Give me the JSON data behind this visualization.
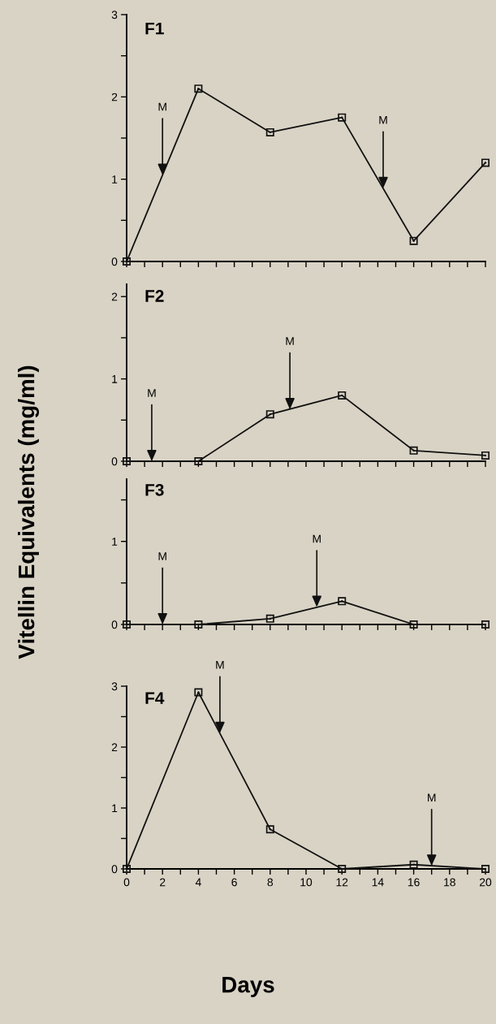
{
  "chart_data": [
    {
      "type": "line",
      "title": "F1",
      "ylabel": "Vitellin Equivalents (mg/ml)",
      "x": [
        0,
        4,
        8,
        12,
        16,
        20
      ],
      "series": [
        {
          "color": "#111111",
          "values": [
            0,
            2.1,
            1.57,
            1.75,
            0.25,
            1.2
          ]
        }
      ],
      "marker": "square",
      "line_style": "solid",
      "xlim": [
        0,
        20
      ],
      "ylim": [
        0,
        3
      ],
      "xticks": [
        0,
        {
          "value": 1,
          "label": null
        },
        2,
        {
          "value": 3,
          "label": null
        },
        4,
        {
          "value": 5,
          "label": null
        },
        6,
        {
          "value": 7,
          "label": null
        },
        8,
        {
          "value": 9,
          "label": null
        },
        10,
        {
          "value": 11,
          "label": null
        },
        12,
        {
          "value": 13,
          "label": null
        },
        14,
        {
          "value": 15,
          "label": null
        },
        16,
        {
          "value": 17,
          "label": null
        },
        18,
        {
          "value": 19,
          "label": null
        },
        20
      ],
      "yticks": [
        0,
        {
          "value": 0.5,
          "label": null
        },
        1,
        {
          "value": 1.5,
          "label": null
        },
        2,
        {
          "value": 2.5,
          "label": null
        },
        3
      ],
      "tick_labels": "y",
      "grid": false,
      "legend": false,
      "annotations": [
        {
          "text": "M",
          "x": 2,
          "y": 1.05
        },
        {
          "text": "M",
          "x": 14.3,
          "y": 0.89
        }
      ]
    },
    {
      "type": "line",
      "title": "F2",
      "x": [
        0,
        4,
        8,
        12,
        16,
        20
      ],
      "series": [
        {
          "color": "#111111",
          "values": [
            0,
            0,
            0.57,
            0.8,
            0.13,
            0.07
          ]
        }
      ],
      "marker": "square",
      "line_style": "solid",
      "xlim": [
        0,
        20
      ],
      "ylim": [
        0,
        2.15
      ],
      "xticks": [
        0,
        {
          "value": 1,
          "label": null
        },
        2,
        {
          "value": 3,
          "label": null
        },
        4,
        {
          "value": 5,
          "label": null
        },
        6,
        {
          "value": 7,
          "label": null
        },
        8,
        {
          "value": 9,
          "label": null
        },
        10,
        {
          "value": 11,
          "label": null
        },
        12,
        {
          "value": 13,
          "label": null
        },
        14,
        {
          "value": 15,
          "label": null
        },
        16,
        {
          "value": 17,
          "label": null
        },
        18,
        {
          "value": 19,
          "label": null
        },
        20
      ],
      "yticks": [
        0,
        {
          "value": 0.5,
          "label": null
        },
        1,
        {
          "value": 1.5,
          "label": null
        },
        2
      ],
      "tick_labels": "y",
      "grid": false,
      "legend": false,
      "annotations": [
        {
          "text": "M",
          "x": 1.4,
          "y": 0
        },
        {
          "text": "M",
          "x": 9.1,
          "y": 0.63
        }
      ]
    },
    {
      "type": "line",
      "title": "F3",
      "x": [
        0,
        4,
        8,
        12,
        16,
        20
      ],
      "series": [
        {
          "color": "#111111",
          "values": [
            0,
            0,
            0.07,
            0.28,
            0,
            0
          ]
        }
      ],
      "marker": "square",
      "line_style": "solid",
      "xlim": [
        0,
        20
      ],
      "ylim": [
        0,
        1.75
      ],
      "xticks": [
        0,
        {
          "value": 1,
          "label": null
        },
        2,
        {
          "value": 3,
          "label": null
        },
        4,
        {
          "value": 5,
          "label": null
        },
        6,
        {
          "value": 7,
          "label": null
        },
        8,
        {
          "value": 9,
          "label": null
        },
        10,
        {
          "value": 11,
          "label": null
        },
        12,
        {
          "value": 13,
          "label": null
        },
        14,
        {
          "value": 15,
          "label": null
        },
        16,
        {
          "value": 17,
          "label": null
        },
        18,
        {
          "value": 19,
          "label": null
        },
        20
      ],
      "yticks": [
        0,
        {
          "value": 0.5,
          "label": null
        },
        1,
        {
          "value": 1.5,
          "label": null
        }
      ],
      "tick_labels": "y",
      "grid": false,
      "legend": false,
      "annotations": [
        {
          "text": "M",
          "x": 2,
          "y": 0
        },
        {
          "text": "M",
          "x": 10.6,
          "y": 0.21
        }
      ]
    },
    {
      "type": "line",
      "title": "F4",
      "xlabel": "Days",
      "x": [
        0,
        4,
        8,
        12,
        16,
        20
      ],
      "series": [
        {
          "color": "#111111",
          "values": [
            0,
            2.9,
            0.65,
            0,
            0.07,
            0
          ]
        }
      ],
      "marker": "square",
      "line_style": "solid",
      "xlim": [
        0,
        20
      ],
      "ylim": [
        0,
        3
      ],
      "xticks": [
        0,
        {
          "value": 1,
          "label": null
        },
        2,
        {
          "value": 3,
          "label": null
        },
        4,
        {
          "value": 5,
          "label": null
        },
        6,
        {
          "value": 7,
          "label": null
        },
        8,
        {
          "value": 9,
          "label": null
        },
        10,
        {
          "value": 11,
          "label": null
        },
        12,
        {
          "value": 13,
          "label": null
        },
        14,
        {
          "value": 15,
          "label": null
        },
        16,
        {
          "value": 17,
          "label": null
        },
        18,
        {
          "value": 19,
          "label": null
        },
        20
      ],
      "yticks": [
        0,
        {
          "value": 0.5,
          "label": null
        },
        1,
        {
          "value": 1.5,
          "label": null
        },
        2,
        {
          "value": 2.5,
          "label": null
        },
        3
      ],
      "grid": false,
      "legend": false,
      "annotations": [
        {
          "text": "M",
          "x": 5.2,
          "y": 2.23
        },
        {
          "text": "M",
          "x": 17,
          "y": 0.05
        }
      ]
    }
  ]
}
